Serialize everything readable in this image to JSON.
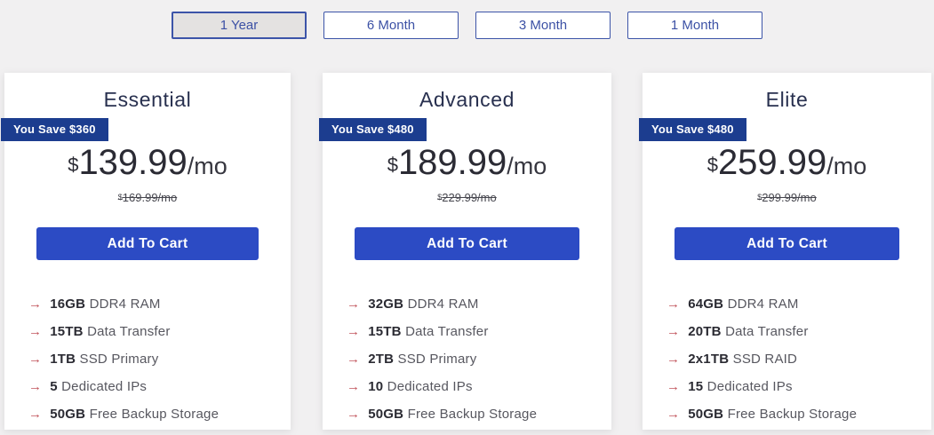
{
  "billing_tabs": {
    "items": [
      {
        "label": "1 Year",
        "active": true
      },
      {
        "label": "6 Month",
        "active": false
      },
      {
        "label": "3 Month",
        "active": false
      },
      {
        "label": "1 Month",
        "active": false
      }
    ]
  },
  "icons": {
    "feature_arrow": "→"
  },
  "colors": {
    "page_bg": "#f1f0f1",
    "card_bg": "#ffffff",
    "badge_bg": "#1c3d8f",
    "button_bg": "#2c4bc4",
    "tab_accent": "#3c51a5",
    "active_tab_bg": "#e4e2e1",
    "arrow_red": "#c1545b",
    "title_color": "#28304f"
  },
  "plans": [
    {
      "name": "Essential",
      "badge": "You Save $360",
      "currency": "$",
      "price": "139.99",
      "period": "/mo",
      "old_currency": "$",
      "old_price": "169.99/mo",
      "cta": "Add To Cart",
      "features": [
        {
          "value": "16GB",
          "text": "DDR4 RAM"
        },
        {
          "value": "15TB",
          "text": "Data Transfer"
        },
        {
          "value": "1TB",
          "text": "SSD Primary"
        },
        {
          "value": "5",
          "text": "Dedicated IPs"
        },
        {
          "value": "50GB",
          "text": "Free Backup Storage"
        }
      ]
    },
    {
      "name": "Advanced",
      "badge": "You Save $480",
      "currency": "$",
      "price": "189.99",
      "period": "/mo",
      "old_currency": "$",
      "old_price": "229.99/mo",
      "cta": "Add To Cart",
      "features": [
        {
          "value": "32GB",
          "text": "DDR4 RAM"
        },
        {
          "value": "15TB",
          "text": "Data Transfer"
        },
        {
          "value": "2TB",
          "text": "SSD Primary"
        },
        {
          "value": "10",
          "text": "Dedicated IPs"
        },
        {
          "value": "50GB",
          "text": "Free Backup Storage"
        }
      ]
    },
    {
      "name": "Elite",
      "badge": "You Save $480",
      "currency": "$",
      "price": "259.99",
      "period": "/mo",
      "old_currency": "$",
      "old_price": "299.99/mo",
      "cta": "Add To Cart",
      "features": [
        {
          "value": "64GB",
          "text": "DDR4 RAM"
        },
        {
          "value": "20TB",
          "text": "Data Transfer"
        },
        {
          "value": "2x1TB",
          "text": "SSD RAID"
        },
        {
          "value": "15",
          "text": "Dedicated IPs"
        },
        {
          "value": "50GB",
          "text": "Free Backup Storage"
        }
      ]
    }
  ]
}
